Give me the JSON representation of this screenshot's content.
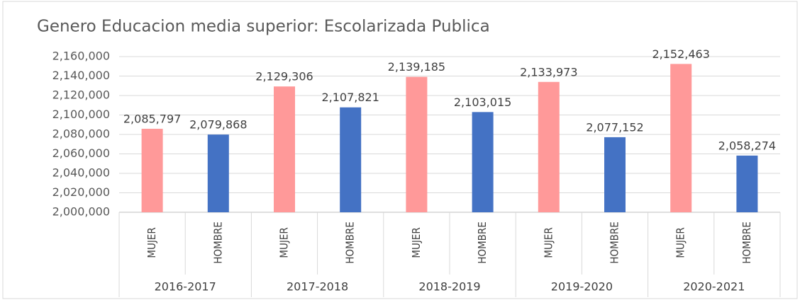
{
  "chart_data": {
    "type": "bar",
    "title": "Genero Educacion media superior: Escolarizada Publica",
    "categories": [
      "2016-2017",
      "2017-2018",
      "2018-2019",
      "2019-2020",
      "2020-2021"
    ],
    "series": [
      {
        "name": "MUJER",
        "color": "#ff9999",
        "values": [
          2085797,
          2129306,
          2139185,
          2133973,
          2152463
        ],
        "value_labels": [
          "2,085,797",
          "2,129,306",
          "2,139,185",
          "2,133,973",
          "2,152,463"
        ]
      },
      {
        "name": "HOMBRE",
        "color": "#4472c4",
        "values": [
          2079868,
          2107821,
          2103015,
          2077152,
          2058274
        ],
        "value_labels": [
          "2,079,868",
          "2,107,821",
          "2,103,015",
          "2,077,152",
          "2,058,274"
        ]
      }
    ],
    "ylim": [
      2000000,
      2160000
    ],
    "yticks": [
      {
        "value": 2000000,
        "label": "2,000,000"
      },
      {
        "value": 2020000,
        "label": "2,020,000"
      },
      {
        "value": 2040000,
        "label": "2,040,000"
      },
      {
        "value": 2060000,
        "label": "2,060,000"
      },
      {
        "value": 2080000,
        "label": "2,080,000"
      },
      {
        "value": 2100000,
        "label": "2,100,000"
      },
      {
        "value": 2120000,
        "label": "2,120,000"
      },
      {
        "value": 2140000,
        "label": "2,140,000"
      },
      {
        "value": 2160000,
        "label": "2,160,000"
      }
    ],
    "grid": true
  }
}
